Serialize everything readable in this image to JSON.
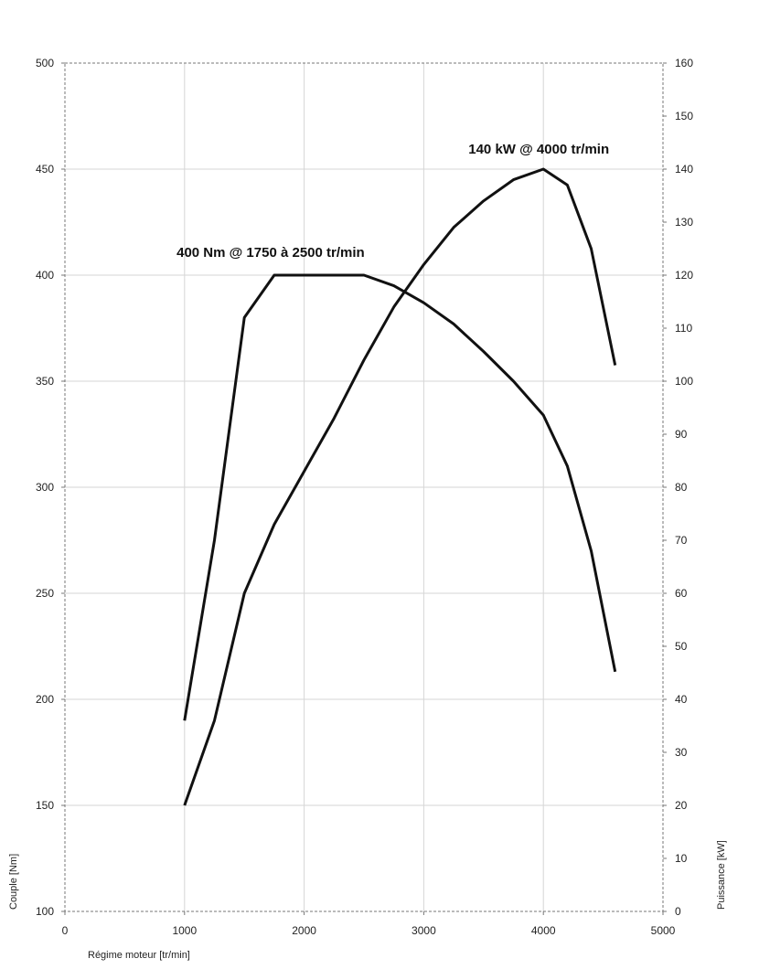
{
  "chart_data": {
    "type": "line",
    "xlabel": "Régime moteur [tr/min]",
    "ylabel_left": "Couple [Nm]",
    "ylabel_right": "Puissance [kW]",
    "xlim": [
      0,
      5000
    ],
    "ylim_left": [
      100,
      500
    ],
    "ylim_right": [
      0,
      160
    ],
    "x_ticks": [
      0,
      1000,
      2000,
      3000,
      4000,
      5000
    ],
    "y_left_ticks": [
      100,
      150,
      200,
      250,
      300,
      350,
      400,
      450,
      500
    ],
    "y_right_ticks": [
      0,
      10,
      20,
      30,
      40,
      50,
      60,
      70,
      80,
      90,
      100,
      110,
      120,
      130,
      140,
      150,
      160
    ],
    "grid": true,
    "series": [
      {
        "axis": "left",
        "color": "#111111",
        "x": [
          1000,
          1250,
          1500,
          1750,
          2000,
          2250,
          2500,
          2750,
          3000,
          3250,
          3500,
          3750,
          4000,
          4200,
          4400,
          4600
        ],
        "y": [
          190,
          275,
          380,
          400,
          400,
          400,
          400,
          395,
          387,
          377,
          364,
          350,
          334,
          310,
          270,
          213
        ]
      },
      {
        "axis": "right",
        "color": "#111111",
        "x": [
          1000,
          1250,
          1500,
          1750,
          2000,
          2250,
          2500,
          2750,
          3000,
          3250,
          3500,
          3750,
          4000,
          4200,
          4400,
          4600
        ],
        "y": [
          20,
          36,
          60,
          73,
          83,
          93,
          104,
          114,
          122,
          129,
          134,
          138,
          140,
          137,
          125,
          103
        ]
      }
    ],
    "annotations": [
      {
        "text": "400 Nm @ 1750 à 2500 tr/min",
        "x": 1750,
        "y": 400,
        "axis": "left"
      },
      {
        "text": "140 kW @ 4000 tr/min",
        "x": 4000,
        "y": 140,
        "axis": "right"
      }
    ]
  }
}
